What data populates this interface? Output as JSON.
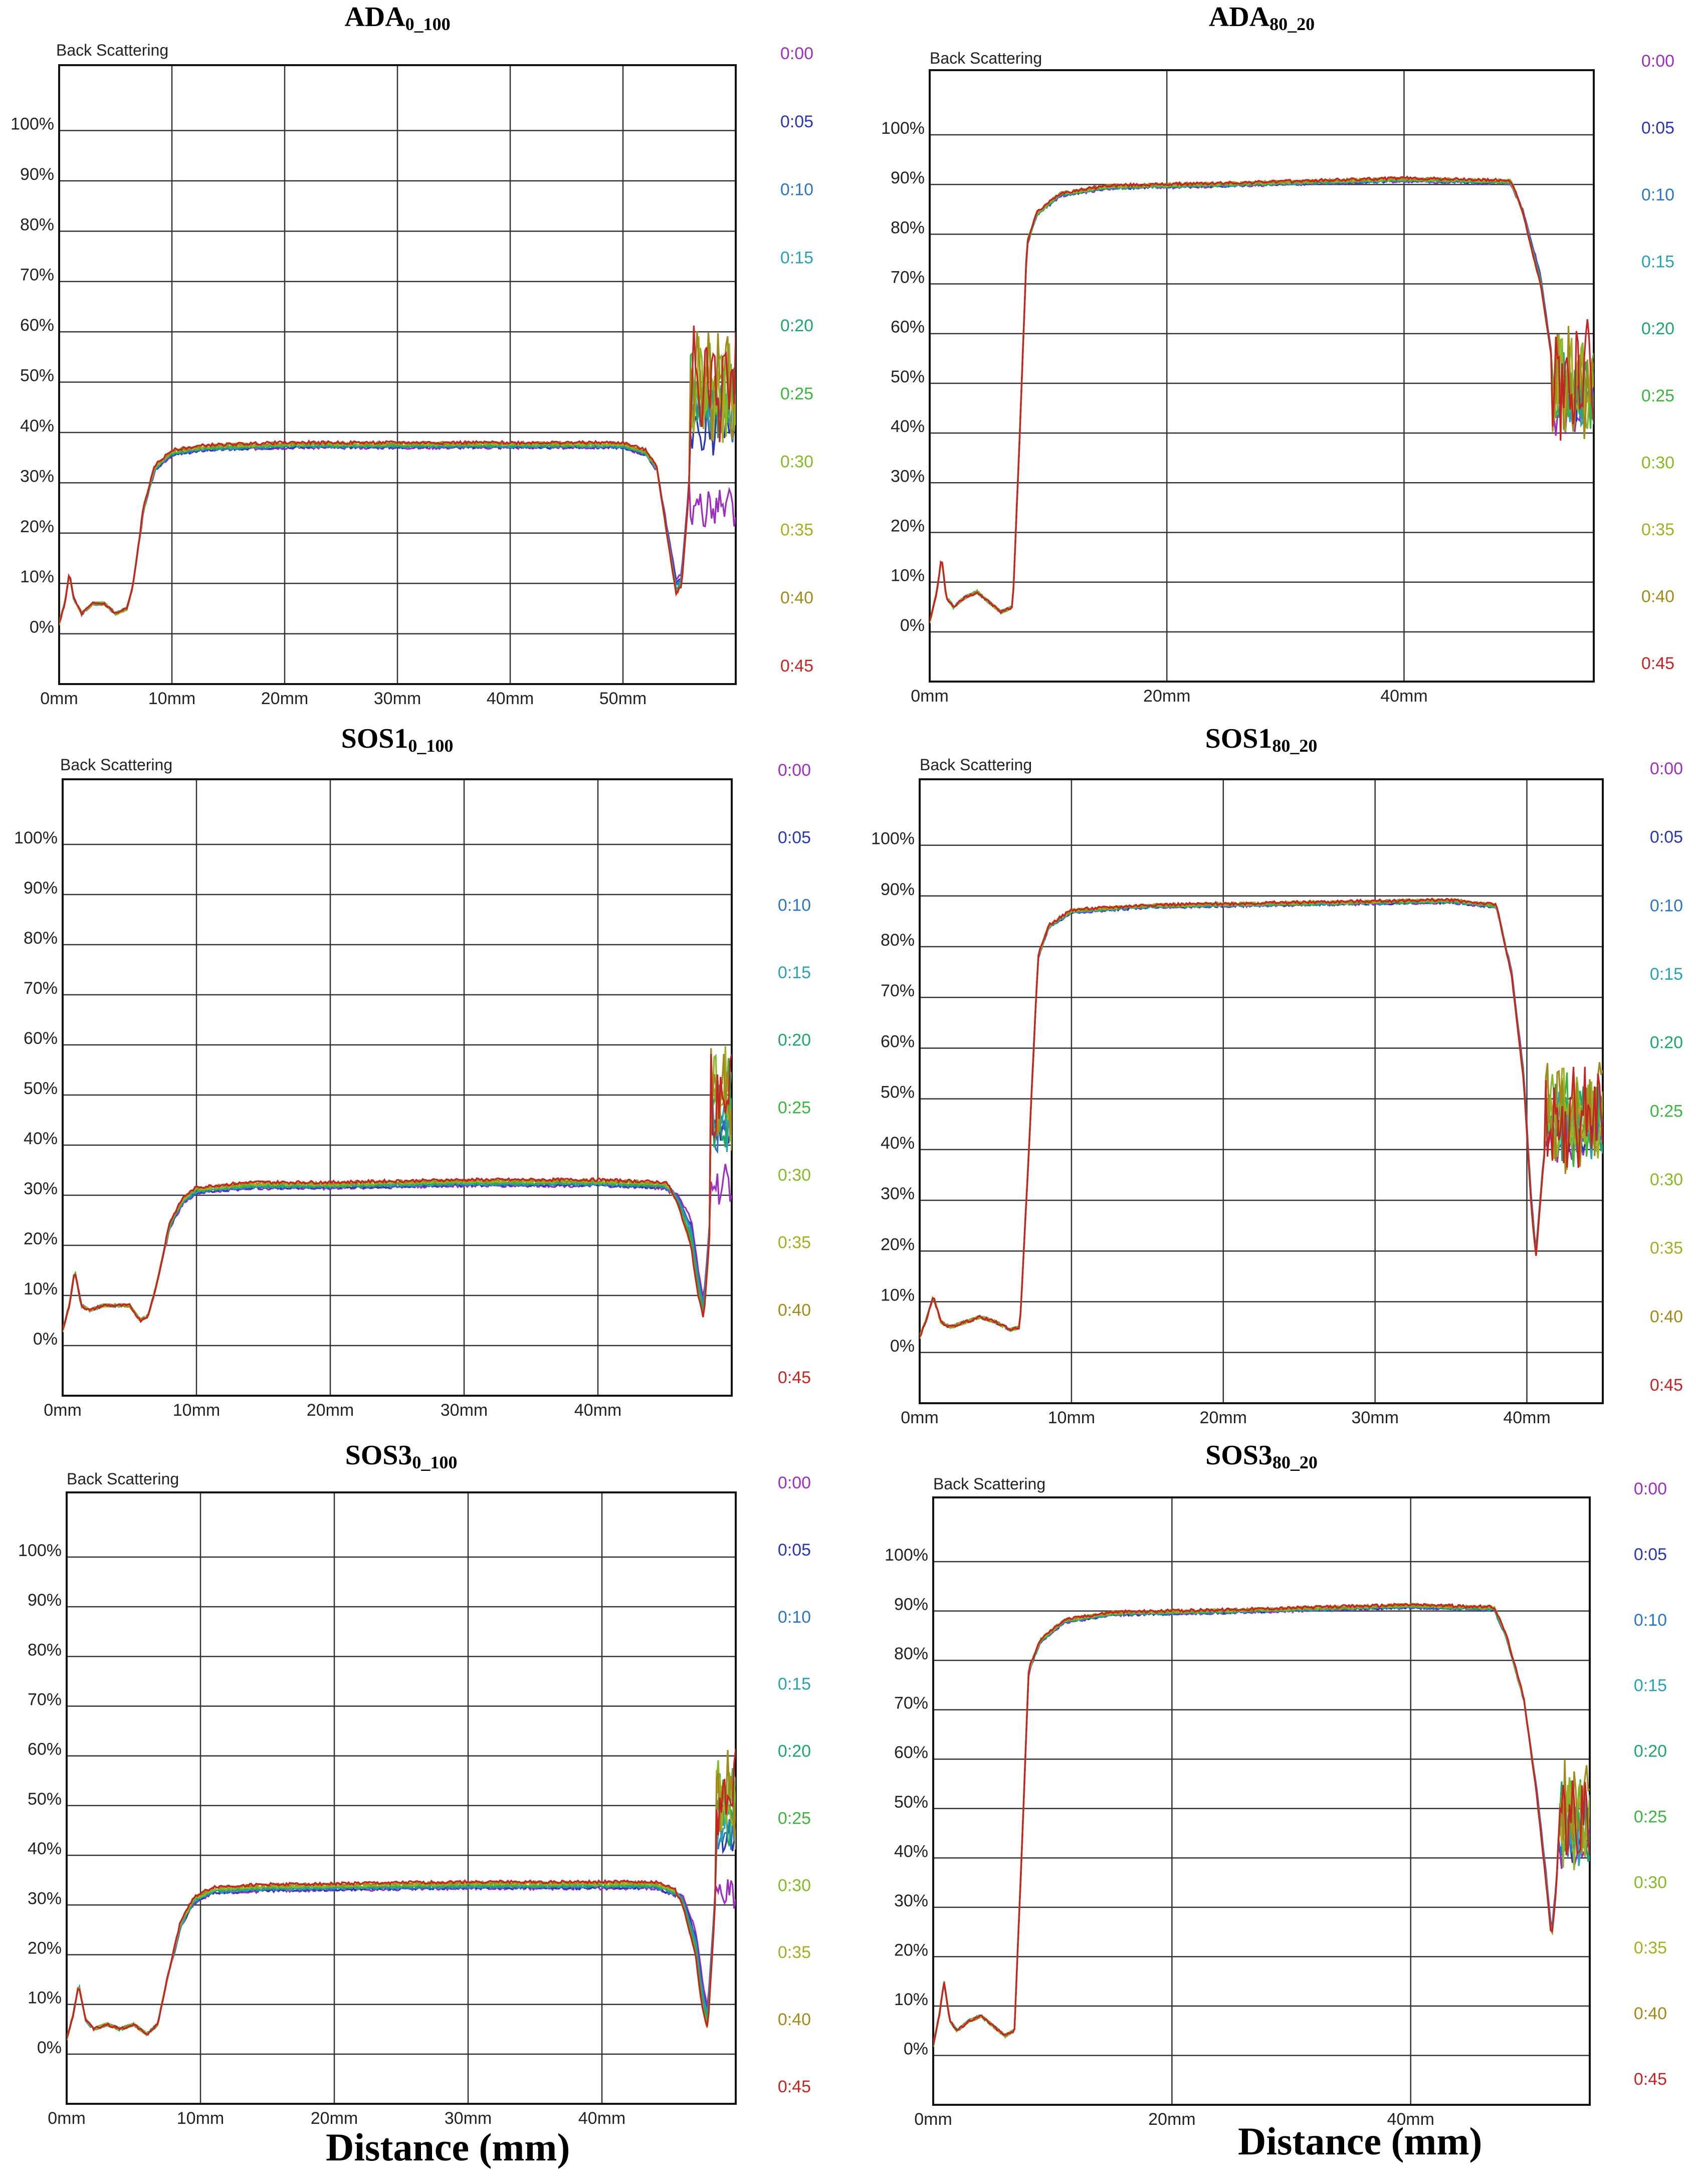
{
  "axis_title": "Back Scattering",
  "xlabel": "Distance (mm)",
  "time_labels": [
    "0:00",
    "0:05",
    "0:10",
    "0:15",
    "0:20",
    "0:25",
    "0:30",
    "0:35",
    "0:40",
    "0:45"
  ],
  "colors": {
    "series": [
      "#9a2fc0",
      "#2a35b0",
      "#2d74c4",
      "#2aa0b0",
      "#20a46a",
      "#3fb33f",
      "#86b82a",
      "#a6ad25",
      "#a08a1c",
      "#c42424"
    ]
  },
  "chart_data": [
    {
      "type": "line",
      "title_main": "ADA",
      "title_sub": "0_100",
      "ylabel": "Back Scattering",
      "y_ticks": [
        "0%",
        "10%",
        "20%",
        "30%",
        "40%",
        "50%",
        "60%",
        "70%",
        "80%",
        "90%",
        "100%"
      ],
      "x_ticks": [
        "0mm",
        "10mm",
        "20mm",
        "30mm",
        "40mm",
        "50mm"
      ],
      "x_tick_values": [
        0,
        10,
        20,
        30,
        40,
        50
      ],
      "xlim": [
        0,
        60
      ],
      "ylim": [
        -10,
        113
      ],
      "series_names": [
        "0:00",
        "0:05",
        "0:10",
        "0:15",
        "0:20",
        "0:25",
        "0:30",
        "0:35",
        "0:40",
        "0:45"
      ],
      "profile": {
        "points": [
          [
            0,
            2
          ],
          [
            0.5,
            6
          ],
          [
            0.9,
            12
          ],
          [
            1.3,
            7
          ],
          [
            2,
            4
          ],
          [
            3,
            6
          ],
          [
            4,
            6
          ],
          [
            5,
            4
          ],
          [
            6,
            5
          ],
          [
            6.5,
            9
          ],
          [
            7.5,
            25
          ],
          [
            8.5,
            33
          ],
          [
            10,
            36
          ],
          [
            13,
            37
          ],
          [
            20,
            37.5
          ],
          [
            40,
            37.5
          ],
          [
            50,
            37.5
          ],
          [
            52,
            36
          ],
          [
            53,
            33
          ],
          [
            54,
            20
          ],
          [
            54.7,
            11
          ],
          [
            55.2,
            12
          ],
          [
            55.8,
            28
          ],
          [
            56.2,
            48
          ],
          [
            60,
            48
          ]
        ],
        "plateau_spread": 1.0,
        "tail_start": 56.0,
        "tail_levels": [
          25,
          41,
          44,
          46,
          47,
          48,
          49,
          49,
          50,
          50
        ],
        "dip_depth": [
          0,
          1,
          1.5,
          2,
          2.5,
          3,
          3,
          3,
          3,
          3
        ]
      }
    },
    {
      "type": "line",
      "title_main": "ADA",
      "title_sub": "80_20",
      "ylabel": "Back Scattering",
      "y_ticks": [
        "0%",
        "10%",
        "20%",
        "30%",
        "40%",
        "50%",
        "60%",
        "70%",
        "80%",
        "90%",
        "100%"
      ],
      "x_ticks": [
        "0mm",
        "20mm",
        "40mm"
      ],
      "x_tick_values": [
        0,
        20,
        40
      ],
      "xlim": [
        0,
        56
      ],
      "ylim": [
        -10,
        113
      ],
      "series_names": [
        "0:00",
        "0:05",
        "0:10",
        "0:15",
        "0:20",
        "0:25",
        "0:30",
        "0:35",
        "0:40",
        "0:45"
      ],
      "profile": {
        "points": [
          [
            0,
            2
          ],
          [
            0.6,
            8
          ],
          [
            1,
            15
          ],
          [
            1.4,
            7
          ],
          [
            2,
            5
          ],
          [
            3,
            7
          ],
          [
            4,
            8
          ],
          [
            5,
            6
          ],
          [
            6,
            4
          ],
          [
            7,
            5
          ],
          [
            7.6,
            40
          ],
          [
            8.2,
            78
          ],
          [
            9,
            84
          ],
          [
            11,
            88
          ],
          [
            15,
            89.5
          ],
          [
            25,
            90
          ],
          [
            40,
            91
          ],
          [
            49,
            90.5
          ],
          [
            50,
            85
          ],
          [
            51.5,
            72
          ],
          [
            52.5,
            55
          ],
          [
            53.3,
            38
          ],
          [
            53.8,
            25
          ],
          [
            54.2,
            35
          ],
          [
            54.6,
            55
          ],
          [
            55,
            45
          ],
          [
            55.5,
            52
          ],
          [
            56,
            50
          ]
        ],
        "plateau_spread": 0.6,
        "tail_start": 52.5,
        "tail_levels": [
          44,
          46,
          47,
          48,
          48,
          49,
          50,
          50,
          50,
          50
        ],
        "dip_depth": [
          0,
          0.5,
          1,
          1,
          1.5,
          2,
          2,
          2,
          2,
          2
        ]
      }
    },
    {
      "type": "line",
      "title_main": "SOS1",
      "title_sub": "0_100",
      "ylabel": "Back Scattering",
      "y_ticks": [
        "0%",
        "10%",
        "20%",
        "30%",
        "40%",
        "50%",
        "60%",
        "70%",
        "80%",
        "90%",
        "100%"
      ],
      "x_ticks": [
        "0mm",
        "10mm",
        "20mm",
        "30mm",
        "40mm"
      ],
      "x_tick_values": [
        0,
        10,
        20,
        30,
        40
      ],
      "xlim": [
        0,
        50
      ],
      "ylim": [
        -10,
        113
      ],
      "series_names": [
        "0:00",
        "0:05",
        "0:10",
        "0:15",
        "0:20",
        "0:25",
        "0:30",
        "0:35",
        "0:40",
        "0:45"
      ],
      "profile": {
        "points": [
          [
            0,
            3
          ],
          [
            0.5,
            8
          ],
          [
            0.9,
            15
          ],
          [
            1.4,
            8
          ],
          [
            2,
            7
          ],
          [
            3,
            8
          ],
          [
            4,
            8
          ],
          [
            5,
            8
          ],
          [
            5.8,
            5
          ],
          [
            6.4,
            6
          ],
          [
            7,
            12
          ],
          [
            8,
            24
          ],
          [
            9,
            29
          ],
          [
            10,
            31
          ],
          [
            14,
            32
          ],
          [
            20,
            32
          ],
          [
            30,
            32.5
          ],
          [
            40,
            32.5
          ],
          [
            45,
            32
          ],
          [
            46,
            30
          ],
          [
            47,
            25
          ],
          [
            47.5,
            15
          ],
          [
            47.9,
            9
          ],
          [
            48.3,
            22
          ],
          [
            48.7,
            45
          ],
          [
            50,
            47
          ]
        ],
        "plateau_spread": 1.2,
        "tail_start": 48.4,
        "tail_levels": [
          32,
          43,
          45,
          46,
          47,
          48,
          48,
          49,
          49,
          49
        ],
        "dip_depth": [
          0,
          1.5,
          2,
          3,
          4,
          5,
          6,
          6,
          6,
          6
        ]
      }
    },
    {
      "type": "line",
      "title_main": "SOS1",
      "title_sub": "80_20",
      "ylabel": "Back Scattering",
      "y_ticks": [
        "0%",
        "10%",
        "20%",
        "30%",
        "40%",
        "50%",
        "60%",
        "70%",
        "80%",
        "90%",
        "100%"
      ],
      "x_ticks": [
        "0mm",
        "10mm",
        "20mm",
        "30mm",
        "40mm"
      ],
      "x_tick_values": [
        0,
        10,
        20,
        30,
        40
      ],
      "xlim": [
        0,
        45
      ],
      "ylim": [
        -10,
        113
      ],
      "series_names": [
        "0:00",
        "0:05",
        "0:10",
        "0:15",
        "0:20",
        "0:25",
        "0:30",
        "0:35",
        "0:40",
        "0:45"
      ],
      "profile": {
        "points": [
          [
            0,
            3
          ],
          [
            0.5,
            7
          ],
          [
            0.9,
            11
          ],
          [
            1.4,
            6
          ],
          [
            2,
            5
          ],
          [
            3,
            6
          ],
          [
            4,
            7
          ],
          [
            5,
            6
          ],
          [
            6,
            4.5
          ],
          [
            6.6,
            5
          ],
          [
            7.2,
            40
          ],
          [
            7.8,
            78
          ],
          [
            8.5,
            84
          ],
          [
            10,
            87
          ],
          [
            15,
            88
          ],
          [
            25,
            88.5
          ],
          [
            35,
            89
          ],
          [
            38,
            88
          ],
          [
            39,
            75
          ],
          [
            39.8,
            55
          ],
          [
            40.3,
            30
          ],
          [
            40.6,
            20
          ],
          [
            41,
            35
          ],
          [
            41.5,
            50
          ],
          [
            42,
            45
          ],
          [
            45,
            45
          ]
        ],
        "plateau_spread": 0.5,
        "tail_start": 41.2,
        "tail_levels": [
          42,
          44,
          45,
          45,
          46,
          46,
          46,
          46,
          46,
          46
        ],
        "dip_depth": [
          0,
          0.5,
          1,
          1,
          1.5,
          1.5,
          2,
          2,
          2,
          2
        ]
      }
    },
    {
      "type": "line",
      "title_main": "SOS3",
      "title_sub": "0_100",
      "ylabel": "Back Scattering",
      "y_ticks": [
        "0%",
        "10%",
        "20%",
        "30%",
        "40%",
        "50%",
        "60%",
        "70%",
        "80%",
        "90%",
        "100%"
      ],
      "x_ticks": [
        "0mm",
        "10mm",
        "20mm",
        "30mm",
        "40mm"
      ],
      "x_tick_values": [
        0,
        10,
        20,
        30,
        40
      ],
      "xlim": [
        0,
        50
      ],
      "ylim": [
        -10,
        113
      ],
      "series_names": [
        "0:00",
        "0:05",
        "0:10",
        "0:15",
        "0:20",
        "0:25",
        "0:30",
        "0:35",
        "0:40",
        "0:45"
      ],
      "profile": {
        "points": [
          [
            0,
            3
          ],
          [
            0.5,
            8
          ],
          [
            0.9,
            14
          ],
          [
            1.4,
            7
          ],
          [
            2,
            5
          ],
          [
            3,
            6
          ],
          [
            4,
            5
          ],
          [
            5,
            6
          ],
          [
            6,
            4
          ],
          [
            6.8,
            6
          ],
          [
            7.5,
            15
          ],
          [
            8.5,
            26
          ],
          [
            9.5,
            31
          ],
          [
            11,
            33
          ],
          [
            15,
            33.5
          ],
          [
            30,
            34
          ],
          [
            40,
            34
          ],
          [
            44,
            34
          ],
          [
            46,
            32
          ],
          [
            47,
            25
          ],
          [
            47.5,
            15
          ],
          [
            47.9,
            9
          ],
          [
            48.3,
            25
          ],
          [
            48.8,
            50
          ],
          [
            50,
            50
          ]
        ],
        "plateau_spread": 1.3,
        "tail_start": 48.5,
        "tail_levels": [
          33,
          44,
          46,
          47,
          48,
          49,
          50,
          51,
          52,
          52
        ],
        "dip_depth": [
          0,
          1.5,
          2,
          3,
          4,
          5,
          6,
          6,
          6,
          6
        ]
      }
    },
    {
      "type": "line",
      "title_main": "SOS3",
      "title_sub": "80_20",
      "ylabel": "Back Scattering",
      "y_ticks": [
        "0%",
        "10%",
        "20%",
        "30%",
        "40%",
        "50%",
        "60%",
        "70%",
        "80%",
        "90%",
        "100%"
      ],
      "x_ticks": [
        "0mm",
        "20mm",
        "40mm"
      ],
      "x_tick_values": [
        0,
        20,
        40
      ],
      "xlim": [
        0,
        55
      ],
      "ylim": [
        -10,
        113
      ],
      "series_names": [
        "0:00",
        "0:05",
        "0:10",
        "0:15",
        "0:20",
        "0:25",
        "0:30",
        "0:35",
        "0:40",
        "0:45"
      ],
      "profile": {
        "points": [
          [
            0,
            2
          ],
          [
            0.5,
            8
          ],
          [
            0.9,
            15
          ],
          [
            1.4,
            7
          ],
          [
            2,
            5
          ],
          [
            3,
            7
          ],
          [
            4,
            8
          ],
          [
            5,
            6
          ],
          [
            6,
            4
          ],
          [
            6.8,
            5
          ],
          [
            7.4,
            40
          ],
          [
            8,
            78
          ],
          [
            9,
            84
          ],
          [
            11,
            88
          ],
          [
            15,
            89.5
          ],
          [
            25,
            90
          ],
          [
            40,
            91
          ],
          [
            47,
            90.5
          ],
          [
            48,
            85
          ],
          [
            49.5,
            72
          ],
          [
            50.5,
            55
          ],
          [
            51.3,
            38
          ],
          [
            51.8,
            25
          ],
          [
            52.2,
            35
          ],
          [
            52.6,
            55
          ],
          [
            53,
            45
          ],
          [
            53.5,
            50
          ],
          [
            55,
            45
          ]
        ],
        "plateau_spread": 0.6,
        "tail_start": 52.5,
        "tail_levels": [
          42,
          44,
          45,
          46,
          47,
          47,
          48,
          48,
          48,
          48
        ],
        "dip_depth": [
          0,
          0.5,
          1,
          1,
          1.5,
          2,
          2,
          2,
          2,
          2
        ]
      }
    }
  ]
}
